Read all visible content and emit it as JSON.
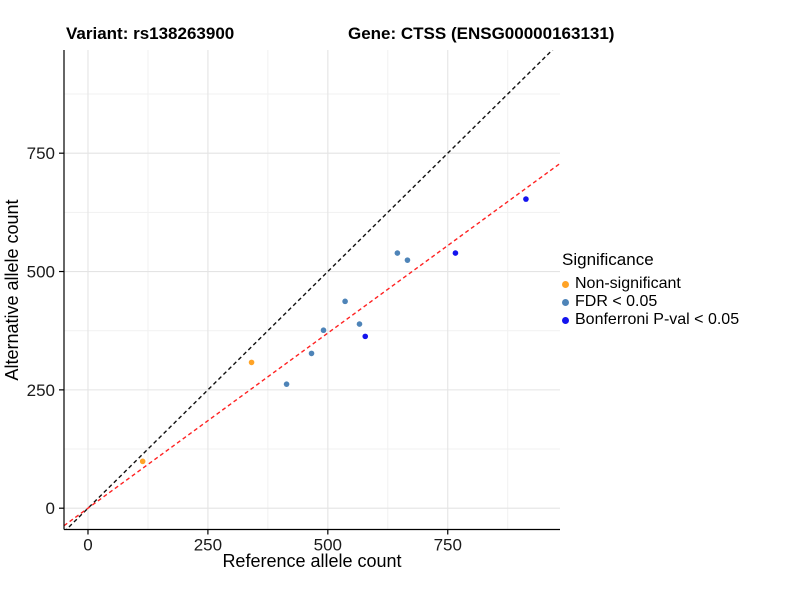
{
  "chart_data": {
    "type": "scatter",
    "titles": {
      "left": "Variant: rs138263900",
      "right": "Gene: CTSS (ENSG00000163131)"
    },
    "xlabel": "Reference allele count",
    "ylabel": "Alternative allele count",
    "xlim": [
      -50,
      984
    ],
    "ylim": [
      -45,
      968
    ],
    "x_ticks": [
      0,
      250,
      500,
      750
    ],
    "y_ticks": [
      0,
      250,
      500,
      750
    ],
    "x_minor": [
      125,
      375,
      625,
      875
    ],
    "y_minor": [
      125,
      375,
      625,
      875
    ],
    "grid": true,
    "legend": {
      "title": "Significance",
      "position": "right"
    },
    "series": [
      {
        "name": "Non-significant",
        "color": "#FFA326",
        "points": [
          [
            114,
            99
          ],
          [
            341,
            308
          ]
        ]
      },
      {
        "name": "FDR < 0.05",
        "color": "#4E84B8",
        "points": [
          [
            414,
            262
          ],
          [
            466,
            327
          ],
          [
            491,
            376
          ],
          [
            536,
            437
          ],
          [
            566,
            389
          ],
          [
            645,
            539
          ],
          [
            666,
            524
          ]
        ]
      },
      {
        "name": "Bonferroni P-val < 0.05",
        "color": "#1414EE",
        "points": [
          [
            578,
            363
          ],
          [
            766,
            539
          ],
          [
            913,
            653
          ]
        ]
      }
    ],
    "ref_lines": [
      {
        "name": "identity-line",
        "slope": 1,
        "intercept": 0,
        "color": "#111111",
        "dash": "4 3"
      },
      {
        "name": "regression-line",
        "slope": 0.74,
        "intercept": 0,
        "color": "#FF2222",
        "dash": "4 3"
      }
    ],
    "colors": {
      "grid_major": "#E4E4E4",
      "grid_minor": "#F1F1F1",
      "axis": "#000000",
      "tick_text": "#1a1a1a"
    }
  }
}
